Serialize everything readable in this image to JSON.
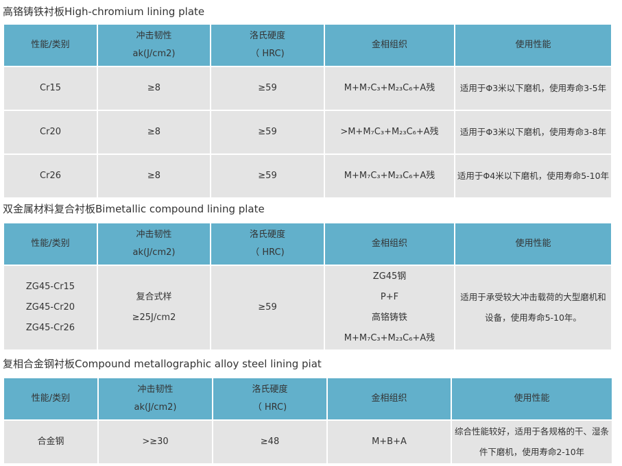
{
  "headers": [
    "性能/类别",
    "冲击韧性\nak(J/cm2)",
    "洛氏硬度\n（ HRC)",
    "金相组织",
    "使用性能"
  ],
  "sections": [
    {
      "title": "高铬铸铁衬板High-chromium lining plate",
      "rows": [
        [
          "Cr15",
          "≥8",
          "≥59",
          "M+M₇C₃+M₂₃C₆+A残",
          "适用于Φ3米以下磨机，使用寿命3-5年"
        ],
        [
          "Cr20",
          "≥8",
          "≥59",
          ">M+M₇C₃+M₂₃C₆+A残",
          "适用于Φ3米以下磨机，使用寿命3-8年"
        ],
        [
          "Cr26",
          "≥8",
          "≥59",
          "M+M₇C₃+M₂₃C₆+A残",
          "适用于Φ4米以下磨机，使用寿命5-10年"
        ]
      ]
    },
    {
      "title": "双金属材料复合衬板Bimetallic compound lining plate",
      "rows": [
        [
          "ZG45-Cr15\nZG45-Cr20\nZG45-Cr26",
          "复合式样\n≥25J/cm2",
          "≥59",
          "ZG45钢\nP+F\n高铬铸铁\nM+M₇C₃+M₂₃C₆+A残",
          "适用于承受较大冲击载荷的大型磨机和设备，使用寿命5-10年。"
        ]
      ]
    },
    {
      "title": "复相合金钢衬板Compound metallographic alloy steel lining piat",
      "rows": [
        [
          "合金钢",
          ">≥30",
          "≥48",
          "M+B+A",
          "综合性能较好，适用于各规格的干、湿条件下磨机，使用寿命2-10年"
        ]
      ]
    }
  ],
  "colors": {
    "header": "#62b0cb",
    "cell": "#e4e4e4",
    "text": "#333333"
  }
}
